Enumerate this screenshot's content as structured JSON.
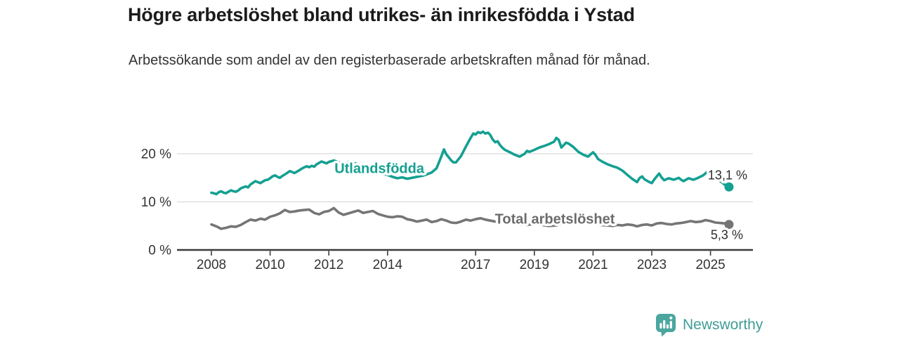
{
  "title": "Högre arbetslöshet bland utrikes- än inrikesfödda i Ystad",
  "subtitle": "Arbetssökande som andel av den registerbaserade arbetskraften månad för månad.",
  "branding": {
    "name": "Newsworthy"
  },
  "colors": {
    "series_utlandsfodda": "#14a092",
    "series_total": "#757575",
    "series_total_label": "#6b6b6b",
    "grid": "#e0e0e0",
    "axis": "#3a3a3a",
    "tick_text": "#333333",
    "value_label_text": "#2d2d2d",
    "brand_icon": "#4ba69e",
    "brand_text": "#3f9d97",
    "title_text": "#1b1b1b",
    "subtitle_text": "#333333"
  },
  "chart_data": {
    "type": "line",
    "title": "Högre arbetslöshet bland utrikes- än inrikesfödda i Ystad",
    "subtitle": "Arbetssökande som andel av den registerbaserade arbetskraften månad för månad.",
    "unit": "percent of registered labour force",
    "grid": true,
    "x_axis": {
      "range": [
        2007.6,
        2026.4
      ],
      "ticks": [
        {
          "value": 2008,
          "label": "2008"
        },
        {
          "value": 2010,
          "label": "2010"
        },
        {
          "value": 2012,
          "label": "2012"
        },
        {
          "value": 2014,
          "label": "2014"
        },
        {
          "value": 2017,
          "label": "2017"
        },
        {
          "value": 2019,
          "label": "2019"
        },
        {
          "value": 2021,
          "label": "2021"
        },
        {
          "value": 2023,
          "label": "2023"
        },
        {
          "value": 2025,
          "label": "2025"
        }
      ]
    },
    "y_axis": {
      "range": [
        0,
        26
      ],
      "ticks": [
        {
          "value": 0,
          "label": "0 %"
        },
        {
          "value": 10,
          "label": "10 %"
        },
        {
          "value": 20,
          "label": "20 %"
        }
      ]
    },
    "series": [
      {
        "id": "total",
        "name": "Total arbetslöshet",
        "color": "#757575",
        "label": {
          "text": "Total arbetslöshet",
          "x": 2019.7,
          "y": 5.5,
          "color": "#6b6b6b"
        },
        "end_value": 5.3,
        "end_label": {
          "text": "5,3 %",
          "dx": -26,
          "dy": 21
        },
        "points": [
          [
            2008.0,
            5.3
          ],
          [
            2008.17,
            4.9
          ],
          [
            2008.33,
            4.4
          ],
          [
            2008.5,
            4.6
          ],
          [
            2008.67,
            4.9
          ],
          [
            2008.83,
            4.8
          ],
          [
            2009.0,
            5.2
          ],
          [
            2009.17,
            5.8
          ],
          [
            2009.33,
            6.3
          ],
          [
            2009.5,
            6.1
          ],
          [
            2009.67,
            6.5
          ],
          [
            2009.83,
            6.3
          ],
          [
            2010.0,
            6.9
          ],
          [
            2010.17,
            7.2
          ],
          [
            2010.33,
            7.6
          ],
          [
            2010.5,
            8.3
          ],
          [
            2010.67,
            7.9
          ],
          [
            2010.83,
            8.0
          ],
          [
            2011.0,
            8.2
          ],
          [
            2011.17,
            8.3
          ],
          [
            2011.33,
            8.4
          ],
          [
            2011.5,
            7.7
          ],
          [
            2011.67,
            7.4
          ],
          [
            2011.83,
            7.9
          ],
          [
            2012.0,
            8.1
          ],
          [
            2012.17,
            8.7
          ],
          [
            2012.33,
            7.8
          ],
          [
            2012.5,
            7.3
          ],
          [
            2012.67,
            7.6
          ],
          [
            2012.83,
            7.9
          ],
          [
            2013.0,
            8.2
          ],
          [
            2013.17,
            7.7
          ],
          [
            2013.33,
            7.9
          ],
          [
            2013.5,
            8.1
          ],
          [
            2013.67,
            7.5
          ],
          [
            2013.83,
            7.2
          ],
          [
            2014.0,
            6.9
          ],
          [
            2014.17,
            6.8
          ],
          [
            2014.33,
            7.0
          ],
          [
            2014.5,
            6.9
          ],
          [
            2014.67,
            6.4
          ],
          [
            2014.83,
            6.2
          ],
          [
            2015.0,
            5.9
          ],
          [
            2015.17,
            6.1
          ],
          [
            2015.33,
            6.3
          ],
          [
            2015.5,
            5.8
          ],
          [
            2015.67,
            6.0
          ],
          [
            2015.83,
            6.4
          ],
          [
            2016.0,
            6.1
          ],
          [
            2016.17,
            5.7
          ],
          [
            2016.33,
            5.6
          ],
          [
            2016.5,
            5.9
          ],
          [
            2016.67,
            6.3
          ],
          [
            2016.83,
            6.1
          ],
          [
            2017.0,
            6.4
          ],
          [
            2017.17,
            6.6
          ],
          [
            2017.33,
            6.3
          ],
          [
            2017.5,
            6.1
          ],
          [
            2017.67,
            5.9
          ],
          [
            2017.83,
            5.8
          ],
          [
            2018.0,
            5.7
          ],
          [
            2018.25,
            5.5
          ],
          [
            2018.5,
            5.3
          ],
          [
            2018.75,
            5.2
          ],
          [
            2019.0,
            5.4
          ],
          [
            2019.25,
            5.2
          ],
          [
            2019.5,
            5.0
          ],
          [
            2019.75,
            5.1
          ],
          [
            2020.0,
            5.6
          ],
          [
            2020.25,
            6.2
          ],
          [
            2020.5,
            6.0
          ],
          [
            2020.75,
            5.7
          ],
          [
            2021.0,
            5.5
          ],
          [
            2021.25,
            5.2
          ],
          [
            2021.5,
            5.1
          ],
          [
            2021.67,
            5.0
          ],
          [
            2021.83,
            5.2
          ],
          [
            2022.0,
            5.1
          ],
          [
            2022.17,
            5.3
          ],
          [
            2022.33,
            5.2
          ],
          [
            2022.5,
            4.9
          ],
          [
            2022.67,
            5.2
          ],
          [
            2022.83,
            5.3
          ],
          [
            2023.0,
            5.1
          ],
          [
            2023.17,
            5.5
          ],
          [
            2023.33,
            5.6
          ],
          [
            2023.5,
            5.4
          ],
          [
            2023.67,
            5.3
          ],
          [
            2023.83,
            5.5
          ],
          [
            2024.0,
            5.6
          ],
          [
            2024.17,
            5.8
          ],
          [
            2024.33,
            6.0
          ],
          [
            2024.5,
            5.8
          ],
          [
            2024.67,
            5.9
          ],
          [
            2024.83,
            6.2
          ],
          [
            2025.0,
            6.0
          ],
          [
            2025.17,
            5.7
          ],
          [
            2025.33,
            5.6
          ],
          [
            2025.5,
            5.5
          ],
          [
            2025.63,
            5.3
          ]
        ]
      },
      {
        "id": "utlandsfodda",
        "name": "Utlandsfödda",
        "color": "#14a092",
        "label": {
          "text": "Utlandsfödda",
          "x": 2013.72,
          "y": 16.0,
          "color": "#14a092"
        },
        "end_value": 13.1,
        "end_label": {
          "text": "13,1 %",
          "dx": -30,
          "dy": -11
        },
        "points": [
          [
            2008.0,
            11.9
          ],
          [
            2008.08,
            11.8
          ],
          [
            2008.17,
            11.6
          ],
          [
            2008.25,
            12.0
          ],
          [
            2008.33,
            12.2
          ],
          [
            2008.42,
            11.9
          ],
          [
            2008.5,
            11.8
          ],
          [
            2008.58,
            12.1
          ],
          [
            2008.67,
            12.4
          ],
          [
            2008.75,
            12.2
          ],
          [
            2008.83,
            12.1
          ],
          [
            2008.92,
            12.4
          ],
          [
            2009.0,
            12.8
          ],
          [
            2009.08,
            13.0
          ],
          [
            2009.17,
            13.2
          ],
          [
            2009.25,
            13.0
          ],
          [
            2009.33,
            13.6
          ],
          [
            2009.42,
            14.0
          ],
          [
            2009.5,
            14.3
          ],
          [
            2009.58,
            14.1
          ],
          [
            2009.67,
            13.9
          ],
          [
            2009.75,
            14.2
          ],
          [
            2009.83,
            14.5
          ],
          [
            2009.92,
            14.6
          ],
          [
            2010.0,
            14.9
          ],
          [
            2010.08,
            15.3
          ],
          [
            2010.17,
            15.5
          ],
          [
            2010.25,
            15.2
          ],
          [
            2010.33,
            15.0
          ],
          [
            2010.42,
            15.4
          ],
          [
            2010.5,
            15.7
          ],
          [
            2010.58,
            16.0
          ],
          [
            2010.67,
            16.4
          ],
          [
            2010.75,
            16.2
          ],
          [
            2010.83,
            16.0
          ],
          [
            2010.92,
            16.3
          ],
          [
            2011.0,
            16.6
          ],
          [
            2011.08,
            16.9
          ],
          [
            2011.17,
            17.2
          ],
          [
            2011.25,
            17.4
          ],
          [
            2011.33,
            17.2
          ],
          [
            2011.42,
            17.5
          ],
          [
            2011.5,
            17.3
          ],
          [
            2011.58,
            17.8
          ],
          [
            2011.67,
            18.1
          ],
          [
            2011.75,
            18.4
          ],
          [
            2011.83,
            18.2
          ],
          [
            2011.92,
            18.0
          ],
          [
            2012.0,
            18.3
          ],
          [
            2012.17,
            18.6
          ],
          [
            2012.33,
            18.2
          ],
          [
            2012.5,
            18.0
          ],
          [
            2012.67,
            18.3
          ],
          [
            2012.83,
            18.1
          ],
          [
            2013.0,
            17.8
          ],
          [
            2013.17,
            17.5
          ],
          [
            2013.33,
            17.1
          ],
          [
            2013.5,
            16.7
          ],
          [
            2013.67,
            16.3
          ],
          [
            2013.83,
            15.9
          ],
          [
            2014.0,
            15.6
          ],
          [
            2014.17,
            15.2
          ],
          [
            2014.33,
            14.9
          ],
          [
            2014.5,
            15.1
          ],
          [
            2014.67,
            14.8
          ],
          [
            2014.83,
            15.0
          ],
          [
            2015.0,
            15.2
          ],
          [
            2015.17,
            15.4
          ],
          [
            2015.33,
            15.7
          ],
          [
            2015.5,
            16.1
          ],
          [
            2015.67,
            17.0
          ],
          [
            2015.83,
            19.4
          ],
          [
            2015.92,
            20.9
          ],
          [
            2016.0,
            19.9
          ],
          [
            2016.08,
            19.3
          ],
          [
            2016.17,
            18.6
          ],
          [
            2016.25,
            18.2
          ],
          [
            2016.33,
            18.2
          ],
          [
            2016.5,
            19.5
          ],
          [
            2016.67,
            21.5
          ],
          [
            2016.83,
            23.3
          ],
          [
            2016.92,
            24.2
          ],
          [
            2017.0,
            24.0
          ],
          [
            2017.08,
            24.5
          ],
          [
            2017.17,
            24.3
          ],
          [
            2017.25,
            24.6
          ],
          [
            2017.33,
            24.2
          ],
          [
            2017.42,
            24.4
          ],
          [
            2017.5,
            23.9
          ],
          [
            2017.58,
            23.0
          ],
          [
            2017.67,
            22.4
          ],
          [
            2017.75,
            22.6
          ],
          [
            2017.83,
            21.8
          ],
          [
            2017.92,
            21.2
          ],
          [
            2018.0,
            20.8
          ],
          [
            2018.17,
            20.3
          ],
          [
            2018.33,
            19.8
          ],
          [
            2018.5,
            19.4
          ],
          [
            2018.67,
            20.0
          ],
          [
            2018.75,
            20.6
          ],
          [
            2018.83,
            20.4
          ],
          [
            2019.0,
            20.8
          ],
          [
            2019.17,
            21.3
          ],
          [
            2019.33,
            21.6
          ],
          [
            2019.5,
            22.0
          ],
          [
            2019.67,
            22.5
          ],
          [
            2019.75,
            23.3
          ],
          [
            2019.83,
            22.9
          ],
          [
            2019.92,
            21.3
          ],
          [
            2020.0,
            21.8
          ],
          [
            2020.08,
            22.3
          ],
          [
            2020.17,
            22.1
          ],
          [
            2020.33,
            21.4
          ],
          [
            2020.5,
            20.4
          ],
          [
            2020.67,
            19.8
          ],
          [
            2020.83,
            19.4
          ],
          [
            2020.92,
            19.9
          ],
          [
            2021.0,
            20.3
          ],
          [
            2021.08,
            19.8
          ],
          [
            2021.17,
            18.9
          ],
          [
            2021.33,
            18.3
          ],
          [
            2021.5,
            17.8
          ],
          [
            2021.67,
            17.4
          ],
          [
            2021.83,
            17.1
          ],
          [
            2022.0,
            16.5
          ],
          [
            2022.17,
            15.6
          ],
          [
            2022.33,
            14.8
          ],
          [
            2022.5,
            14.1
          ],
          [
            2022.58,
            14.9
          ],
          [
            2022.67,
            15.3
          ],
          [
            2022.75,
            14.7
          ],
          [
            2022.92,
            14.1
          ],
          [
            2023.0,
            13.9
          ],
          [
            2023.08,
            14.6
          ],
          [
            2023.25,
            15.9
          ],
          [
            2023.33,
            15.1
          ],
          [
            2023.42,
            14.5
          ],
          [
            2023.58,
            14.9
          ],
          [
            2023.75,
            14.6
          ],
          [
            2023.92,
            15.0
          ],
          [
            2024.0,
            14.6
          ],
          [
            2024.08,
            14.3
          ],
          [
            2024.25,
            14.9
          ],
          [
            2024.42,
            14.6
          ],
          [
            2024.58,
            15.0
          ],
          [
            2024.75,
            15.5
          ],
          [
            2024.92,
            16.4
          ],
          [
            2025.0,
            15.9
          ],
          [
            2025.08,
            15.5
          ],
          [
            2025.17,
            15.2
          ],
          [
            2025.25,
            14.7
          ],
          [
            2025.33,
            14.3
          ],
          [
            2025.42,
            13.9
          ],
          [
            2025.5,
            13.5
          ],
          [
            2025.63,
            13.1
          ]
        ]
      }
    ]
  }
}
